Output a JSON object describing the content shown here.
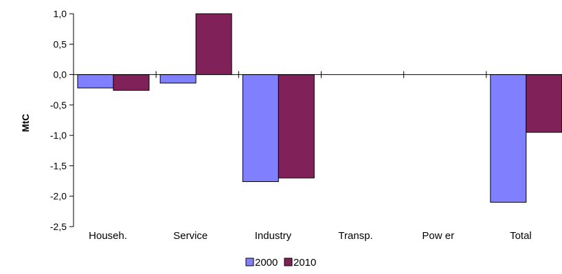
{
  "chart_data": {
    "type": "bar",
    "title": "",
    "xlabel": "",
    "ylabel": "MtC",
    "categories": [
      "Househ.",
      "Service",
      "Industry",
      "Transp.",
      "Pow er",
      "Total"
    ],
    "series": [
      {
        "name": "2000",
        "color": "#8080ff",
        "values": [
          -0.22,
          -0.14,
          -1.76,
          0,
          0,
          -2.1
        ]
      },
      {
        "name": "2010",
        "color": "#812159",
        "values": [
          -0.26,
          1.0,
          -1.7,
          0,
          0,
          -0.95
        ]
      }
    ],
    "ylim": [
      -2.5,
      1.0
    ],
    "yticks": [
      1.0,
      0.5,
      0.0,
      -0.5,
      -1.0,
      -1.5,
      -2.0,
      -2.5
    ],
    "ytick_labels": [
      "1,0",
      "0,5",
      "0,0",
      "-0,5",
      "-1,0",
      "-1,5",
      "-2,0",
      "-2,5"
    ],
    "grid": false,
    "legend_position": "bottom"
  }
}
